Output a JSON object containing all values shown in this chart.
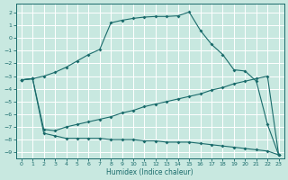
{
  "xlabel": "Humidex (Indice chaleur)",
  "bg_color": "#c8e8e0",
  "grid_color": "#a8d0c8",
  "line_color": "#1a6b6b",
  "xlim": [
    -0.5,
    23.5
  ],
  "ylim": [
    -9.5,
    2.7
  ],
  "yticks": [
    2,
    1,
    0,
    -1,
    -2,
    -3,
    -4,
    -5,
    -6,
    -7,
    -8,
    -9
  ],
  "xticks": [
    0,
    1,
    2,
    3,
    4,
    5,
    6,
    7,
    8,
    9,
    10,
    11,
    12,
    13,
    14,
    15,
    16,
    17,
    18,
    19,
    20,
    21,
    22,
    23
  ],
  "curve1_x": [
    0,
    1,
    2,
    3,
    4,
    5,
    6,
    7,
    8,
    9,
    10,
    11,
    12,
    13,
    14,
    15,
    16,
    17,
    18,
    19,
    20,
    21,
    22,
    23
  ],
  "curve1_y": [
    -3.3,
    -3.2,
    -3.0,
    -2.7,
    -2.3,
    -1.8,
    -1.3,
    -0.9,
    1.2,
    1.4,
    1.55,
    1.65,
    1.7,
    1.7,
    1.75,
    2.05,
    0.6,
    -0.5,
    -1.3,
    -2.5,
    -2.6,
    -3.4,
    -6.8,
    -9.2
  ],
  "curve2_x": [
    0,
    1,
    2,
    3,
    4,
    5,
    6,
    7,
    8,
    9,
    10,
    11,
    12,
    13,
    14,
    15,
    16,
    17,
    18,
    19,
    20,
    21,
    22,
    23
  ],
  "curve2_y": [
    -3.3,
    -3.2,
    -7.2,
    -7.3,
    -7.0,
    -6.8,
    -6.6,
    -6.4,
    -6.2,
    -5.9,
    -5.7,
    -5.4,
    -5.2,
    -5.0,
    -4.8,
    -4.6,
    -4.4,
    -4.1,
    -3.9,
    -3.6,
    -3.4,
    -3.2,
    -3.0,
    -9.2
  ],
  "curve3_x": [
    0,
    1,
    2,
    3,
    4,
    5,
    6,
    7,
    8,
    9,
    10,
    11,
    12,
    13,
    14,
    15,
    16,
    17,
    18,
    19,
    20,
    21,
    22,
    23
  ],
  "curve3_y": [
    -3.3,
    -3.2,
    -7.5,
    -7.7,
    -7.9,
    -7.9,
    -7.9,
    -7.9,
    -8.0,
    -8.0,
    -8.0,
    -8.1,
    -8.1,
    -8.2,
    -8.2,
    -8.2,
    -8.3,
    -8.4,
    -8.5,
    -8.6,
    -8.7,
    -8.8,
    -8.9,
    -9.2
  ]
}
